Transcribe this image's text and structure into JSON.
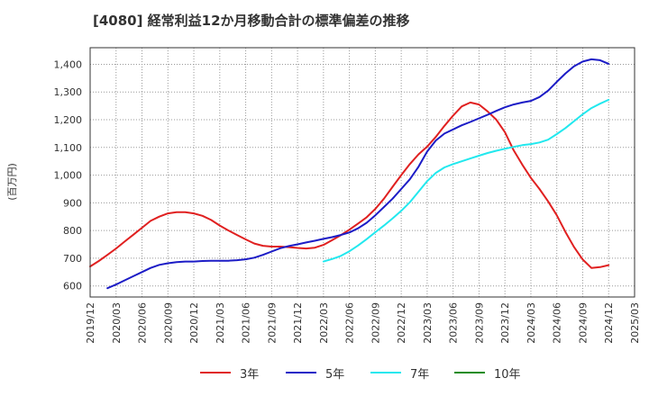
{
  "chart_data": {
    "type": "line",
    "title": "[4080]  経常利益12か月移動合計の標準偏差の推移",
    "ylabel": "(百万円)",
    "xlabel": "",
    "ylim": [
      560,
      1460
    ],
    "yticks": [
      600,
      700,
      800,
      900,
      1000,
      1100,
      1200,
      1300,
      1400
    ],
    "ytick_labels": [
      "600",
      "700",
      "800",
      "900",
      "1,000",
      "1,100",
      "1,200",
      "1,300",
      "1,400"
    ],
    "xticks": [
      "2019/12",
      "2020/03",
      "2020/06",
      "2020/09",
      "2020/12",
      "2021/03",
      "2021/06",
      "2021/09",
      "2021/12",
      "2022/03",
      "2022/06",
      "2022/09",
      "2022/12",
      "2023/03",
      "2023/06",
      "2023/09",
      "2023/12",
      "2024/03",
      "2024/06",
      "2024/09",
      "2024/12",
      "2025/03"
    ],
    "grid": true,
    "legend_position": "bottom",
    "series": [
      {
        "name": "3年",
        "color": "#e02020",
        "x": [
          "2019/12",
          "2020/01",
          "2020/02",
          "2020/03",
          "2020/04",
          "2020/05",
          "2020/06",
          "2020/07",
          "2020/08",
          "2020/09",
          "2020/10",
          "2020/11",
          "2020/12",
          "2021/01",
          "2021/02",
          "2021/03",
          "2021/04",
          "2021/05",
          "2021/06",
          "2021/07",
          "2021/08",
          "2021/09",
          "2021/10",
          "2021/11",
          "2021/12",
          "2022/01",
          "2022/02",
          "2022/03",
          "2022/04",
          "2022/05",
          "2022/06",
          "2022/07",
          "2022/08",
          "2022/09",
          "2022/10",
          "2022/11",
          "2022/12",
          "2023/01",
          "2023/02",
          "2023/03",
          "2023/04",
          "2023/05",
          "2023/06",
          "2023/07",
          "2023/08",
          "2023/09",
          "2023/10",
          "2023/11",
          "2023/12",
          "2024/01",
          "2024/02",
          "2024/03",
          "2024/04",
          "2024/05",
          "2024/06",
          "2024/07",
          "2024/08",
          "2024/09",
          "2024/10",
          "2024/11",
          "2024/12"
        ],
        "values": [
          670,
          690,
          712,
          735,
          760,
          785,
          810,
          835,
          850,
          862,
          866,
          866,
          862,
          853,
          838,
          818,
          800,
          784,
          768,
          753,
          745,
          742,
          742,
          740,
          737,
          735,
          738,
          748,
          765,
          783,
          803,
          825,
          848,
          878,
          915,
          958,
          1000,
          1040,
          1075,
          1103,
          1138,
          1178,
          1215,
          1248,
          1262,
          1255,
          1230,
          1200,
          1155,
          1090,
          1038,
          990,
          950,
          905,
          855,
          795,
          740,
          695,
          665,
          668,
          675
        ]
      },
      {
        "name": "5年",
        "color": "#1c1cc6",
        "x": [
          "2020/02",
          "2020/03",
          "2020/04",
          "2020/05",
          "2020/06",
          "2020/07",
          "2020/08",
          "2020/09",
          "2020/10",
          "2020/11",
          "2020/12",
          "2021/01",
          "2021/02",
          "2021/03",
          "2021/04",
          "2021/05",
          "2021/06",
          "2021/07",
          "2021/08",
          "2021/09",
          "2021/10",
          "2021/11",
          "2021/12",
          "2022/01",
          "2022/02",
          "2022/03",
          "2022/04",
          "2022/05",
          "2022/06",
          "2022/07",
          "2022/08",
          "2022/09",
          "2022/10",
          "2022/11",
          "2022/12",
          "2023/01",
          "2023/02",
          "2023/03",
          "2023/04",
          "2023/05",
          "2023/06",
          "2023/07",
          "2023/08",
          "2023/09",
          "2023/10",
          "2023/11",
          "2023/12",
          "2024/01",
          "2024/02",
          "2024/03",
          "2024/04",
          "2024/05",
          "2024/06",
          "2024/07",
          "2024/08",
          "2024/09",
          "2024/10",
          "2024/11",
          "2024/12"
        ],
        "values": [
          592,
          605,
          620,
          635,
          650,
          665,
          676,
          682,
          686,
          688,
          688,
          690,
          691,
          691,
          691,
          693,
          696,
          702,
          712,
          724,
          736,
          744,
          750,
          757,
          763,
          770,
          776,
          784,
          793,
          808,
          828,
          855,
          885,
          915,
          950,
          985,
          1030,
          1085,
          1125,
          1150,
          1165,
          1180,
          1192,
          1205,
          1218,
          1232,
          1245,
          1255,
          1262,
          1268,
          1282,
          1305,
          1337,
          1367,
          1393,
          1410,
          1418,
          1415,
          1402
        ]
      },
      {
        "name": "7年",
        "color": "#22e8ee",
        "x": [
          "2022/03",
          "2022/04",
          "2022/05",
          "2022/06",
          "2022/07",
          "2022/08",
          "2022/09",
          "2022/10",
          "2022/11",
          "2022/12",
          "2023/01",
          "2023/02",
          "2023/03",
          "2023/04",
          "2023/05",
          "2023/06",
          "2023/07",
          "2023/08",
          "2023/09",
          "2023/10",
          "2023/11",
          "2023/12",
          "2024/01",
          "2024/02",
          "2024/03",
          "2024/04",
          "2024/05",
          "2024/06",
          "2024/07",
          "2024/08",
          "2024/09",
          "2024/10",
          "2024/11",
          "2024/12"
        ],
        "values": [
          688,
          697,
          708,
          725,
          746,
          769,
          794,
          818,
          844,
          871,
          902,
          940,
          978,
          1008,
          1028,
          1040,
          1050,
          1060,
          1070,
          1080,
          1088,
          1095,
          1102,
          1108,
          1112,
          1118,
          1128,
          1148,
          1170,
          1195,
          1220,
          1242,
          1258,
          1272
        ]
      },
      {
        "name": "10年",
        "color": "#1a8c1a",
        "x": [],
        "values": []
      }
    ]
  }
}
